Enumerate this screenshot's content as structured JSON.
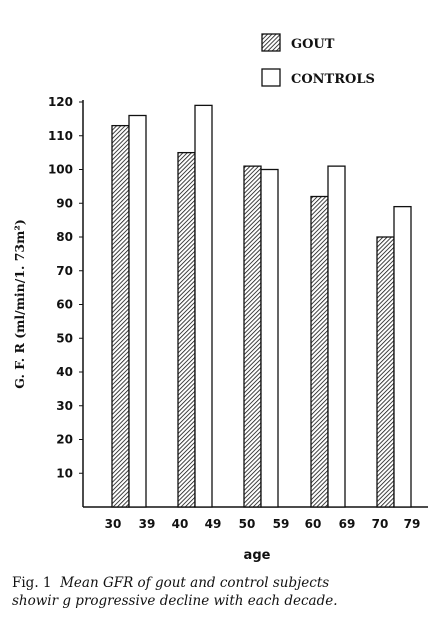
{
  "chart_data": {
    "type": "bar",
    "categories": [
      "30 - 39",
      "40 - 49",
      "50 - 59",
      "60 - 69",
      "70 - 79"
    ],
    "tick_labels": [
      "30",
      "39",
      "40",
      "49",
      "50",
      "59",
      "60",
      "69",
      "70",
      "79"
    ],
    "series": [
      {
        "name": "GOUT",
        "values": [
          113,
          105,
          101,
          92,
          80
        ],
        "pattern": "hatched"
      },
      {
        "name": "CONTROLS",
        "values": [
          116,
          119,
          100,
          101,
          89
        ],
        "pattern": "open"
      }
    ],
    "yticks": [
      10,
      20,
      30,
      40,
      50,
      60,
      70,
      80,
      90,
      100,
      110,
      120
    ],
    "ylim": [
      0,
      120
    ],
    "xlabel": "age",
    "ylabel": "G. F. R (ml/min/1. 73m²)",
    "legend_position": "top-right",
    "grid": false
  },
  "caption": {
    "fig_label": "Fig. 1",
    "line1": "Mean GFR of gout and control subjects",
    "line2": "showir g progressive decline with each decade."
  }
}
